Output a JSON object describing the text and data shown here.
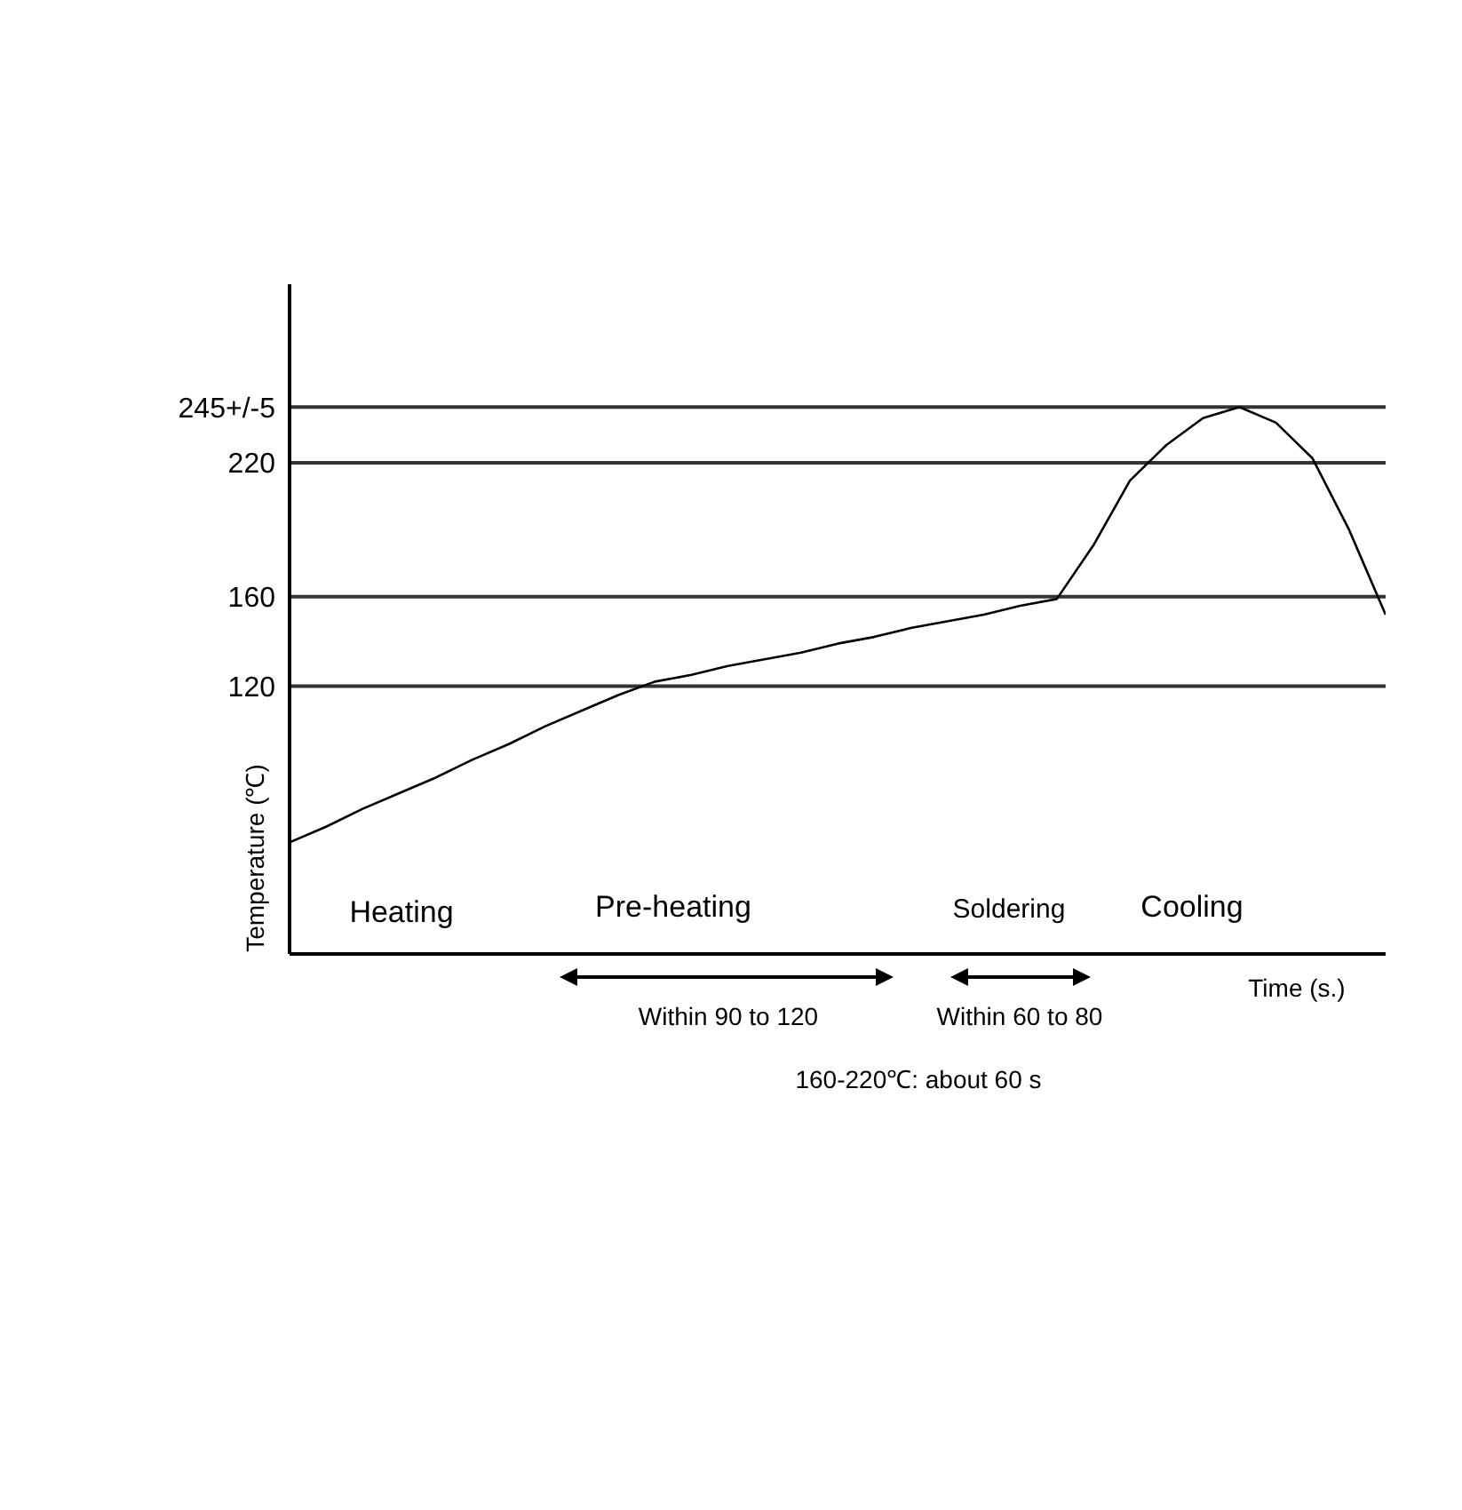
{
  "chart_data": {
    "type": "line",
    "xlabel": "Time (s.)",
    "ylabel": "Temperature (℃)",
    "categories": [
      null,
      null,
      null,
      null,
      null,
      null,
      null,
      null,
      null,
      null,
      null,
      null,
      null,
      null,
      null,
      null,
      null,
      null,
      null,
      null,
      null,
      null,
      null,
      null,
      null,
      null,
      null,
      null,
      null,
      null,
      null
    ],
    "values": [
      50,
      57,
      65,
      72,
      79,
      87,
      94,
      102,
      109,
      116,
      122,
      125,
      129,
      132,
      135,
      139,
      142,
      146,
      149,
      152,
      156,
      159,
      183,
      212,
      228,
      240,
      245,
      238,
      222,
      190,
      152
    ],
    "color": "#000000",
    "marker": "none",
    "line_style": "solid",
    "tick_labels": "y",
    "ylim": [
      0,
      300
    ],
    "yticks": [
      120,
      160,
      220,
      {
        "value": 245,
        "label": "245+/-5"
      }
    ],
    "ref_lines": [
      {
        "axis": "y",
        "value": 120,
        "color": "#333333"
      },
      {
        "axis": "y",
        "value": 160,
        "color": "#333333"
      },
      {
        "axis": "y",
        "value": 220,
        "color": "#333333"
      },
      {
        "axis": "y",
        "value": 245,
        "color": "#333333"
      }
    ],
    "annotations": [
      "Heating",
      "Pre-heating",
      "Soldering",
      "Cooling",
      "Within 90 to 120",
      "Within 60 to 80",
      "160-220℃: about 60 s"
    ]
  }
}
